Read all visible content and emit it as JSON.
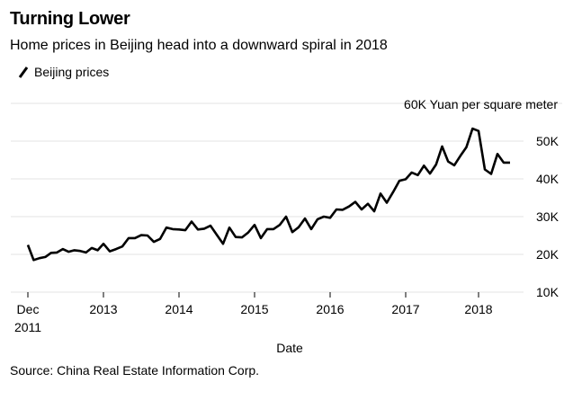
{
  "header": {
    "title": "Turning Lower",
    "subtitle": "Home prices in Beijing head into a downward spiral in 2018"
  },
  "legend": {
    "label": "Beijing prices",
    "color": "#000000"
  },
  "footer": {
    "source": "Source: China Real Estate Information Corp."
  },
  "chart_data": {
    "type": "line",
    "title": "Turning Lower",
    "subtitle": "Home prices in Beijing head into a downward spiral in 2018",
    "xlabel": "Date",
    "ylabel": "60K Yuan per square meter",
    "ylim": [
      10,
      60
    ],
    "y_ticks": [
      {
        "value": 10,
        "label": "10K"
      },
      {
        "value": 20,
        "label": "20K"
      },
      {
        "value": 30,
        "label": "30K"
      },
      {
        "value": 40,
        "label": "40K"
      },
      {
        "value": 50,
        "label": "50K"
      }
    ],
    "y_unit_label": "60K Yuan per square meter",
    "x_range": [
      2011.917,
      2018.6
    ],
    "x_ticks": [
      {
        "value": 2011.917,
        "label": "Dec",
        "label2": "2011"
      },
      {
        "value": 2013,
        "label": "2013"
      },
      {
        "value": 2014,
        "label": "2014"
      },
      {
        "value": 2015,
        "label": "2015"
      },
      {
        "value": 2016,
        "label": "2016"
      },
      {
        "value": 2017,
        "label": "2017"
      },
      {
        "value": 2018,
        "label": "2018"
      }
    ],
    "grid": true,
    "legend_position": "top-left",
    "series": [
      {
        "name": "Beijing prices",
        "color": "#000000",
        "x": [
          2011.917,
          2012.0,
          2012.083,
          2012.167,
          2012.25,
          2012.333,
          2012.417,
          2012.5,
          2012.583,
          2012.667,
          2012.75,
          2012.833,
          2012.917,
          2013.0,
          2013.083,
          2013.167,
          2013.25,
          2013.333,
          2013.417,
          2013.5,
          2013.583,
          2013.667,
          2013.75,
          2013.833,
          2013.917,
          2014.0,
          2014.083,
          2014.167,
          2014.25,
          2014.333,
          2014.417,
          2014.5,
          2014.583,
          2014.667,
          2014.75,
          2014.833,
          2014.917,
          2015.0,
          2015.083,
          2015.167,
          2015.25,
          2015.333,
          2015.417,
          2015.5,
          2015.583,
          2015.667,
          2015.75,
          2015.833,
          2015.917,
          2016.0,
          2016.083,
          2016.167,
          2016.25,
          2016.333,
          2016.417,
          2016.5,
          2016.583,
          2016.667,
          2016.75,
          2016.833,
          2016.917,
          2017.0,
          2017.083,
          2017.167,
          2017.25,
          2017.333,
          2017.417,
          2017.5,
          2017.583,
          2017.667,
          2017.75,
          2017.833,
          2017.917,
          2018.0,
          2018.083,
          2018.167,
          2018.25,
          2018.333,
          2018.417
        ],
        "values": [
          22.5,
          18.5,
          19.0,
          19.3,
          20.4,
          20.5,
          21.4,
          20.7,
          21.1,
          20.9,
          20.5,
          21.7,
          21.1,
          22.8,
          20.8,
          21.4,
          22.1,
          24.3,
          24.3,
          25.1,
          25.0,
          23.3,
          24.1,
          27.1,
          26.7,
          26.6,
          26.4,
          28.7,
          26.6,
          26.8,
          27.6,
          25.2,
          22.8,
          27.1,
          24.6,
          24.5,
          25.8,
          27.8,
          24.3,
          26.7,
          26.7,
          27.8,
          30.0,
          25.9,
          27.2,
          29.5,
          26.7,
          29.3,
          30.0,
          29.7,
          31.9,
          31.8,
          32.7,
          33.9,
          31.9,
          33.4,
          31.4,
          36.1,
          33.7,
          36.5,
          39.5,
          39.9,
          41.7,
          41.0,
          43.5,
          41.4,
          43.8,
          48.6,
          44.6,
          43.6,
          46.1,
          48.4,
          53.3,
          52.7,
          42.5,
          41.3,
          46.6,
          44.3,
          44.3
        ]
      }
    ]
  }
}
